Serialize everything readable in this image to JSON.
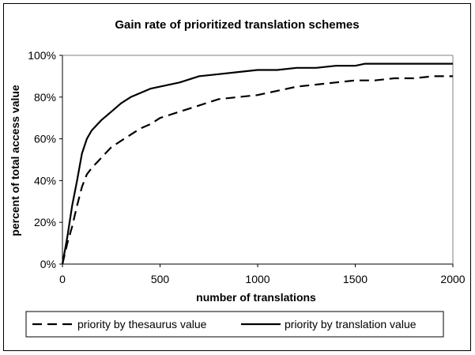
{
  "chart_data": {
    "type": "line",
    "title": "Gain rate of prioritized translation schemes",
    "xlabel": "number of translations",
    "ylabel": "percent of total access value",
    "xlim": [
      0,
      2000
    ],
    "ylim": [
      0,
      100
    ],
    "x_ticks": [
      "0",
      "500",
      "1000",
      "1500",
      "2000"
    ],
    "y_ticks": [
      "0%",
      "20%",
      "40%",
      "60%",
      "80%",
      "100%"
    ],
    "grid": false,
    "legend_position": "bottom",
    "series": [
      {
        "name": "priority by thesaurus value",
        "style": "dashed",
        "color": "#000000",
        "points": [
          [
            0,
            0
          ],
          [
            25,
            10
          ],
          [
            50,
            18
          ],
          [
            75,
            28
          ],
          [
            100,
            37
          ],
          [
            125,
            43
          ],
          [
            150,
            46
          ],
          [
            200,
            51
          ],
          [
            250,
            56
          ],
          [
            300,
            59
          ],
          [
            350,
            62
          ],
          [
            400,
            65
          ],
          [
            450,
            67
          ],
          [
            500,
            70
          ],
          [
            600,
            73
          ],
          [
            700,
            76
          ],
          [
            800,
            79
          ],
          [
            900,
            80
          ],
          [
            1000,
            81
          ],
          [
            1100,
            83
          ],
          [
            1200,
            85
          ],
          [
            1300,
            86
          ],
          [
            1400,
            87
          ],
          [
            1500,
            88
          ],
          [
            1600,
            88
          ],
          [
            1700,
            89
          ],
          [
            1800,
            89
          ],
          [
            1900,
            90
          ],
          [
            2000,
            90
          ]
        ]
      },
      {
        "name": "priority by translation value",
        "style": "solid",
        "color": "#000000",
        "points": [
          [
            0,
            0
          ],
          [
            25,
            13
          ],
          [
            50,
            28
          ],
          [
            75,
            40
          ],
          [
            100,
            53
          ],
          [
            125,
            60
          ],
          [
            150,
            64
          ],
          [
            200,
            69
          ],
          [
            250,
            73
          ],
          [
            300,
            77
          ],
          [
            350,
            80
          ],
          [
            400,
            82
          ],
          [
            450,
            84
          ],
          [
            500,
            85
          ],
          [
            600,
            87
          ],
          [
            700,
            90
          ],
          [
            800,
            91
          ],
          [
            900,
            92
          ],
          [
            1000,
            93
          ],
          [
            1100,
            93
          ],
          [
            1200,
            94
          ],
          [
            1300,
            94
          ],
          [
            1400,
            95
          ],
          [
            1500,
            95
          ],
          [
            1550,
            96
          ],
          [
            1700,
            96
          ],
          [
            1750,
            96
          ],
          [
            2000,
            96
          ]
        ]
      }
    ]
  }
}
